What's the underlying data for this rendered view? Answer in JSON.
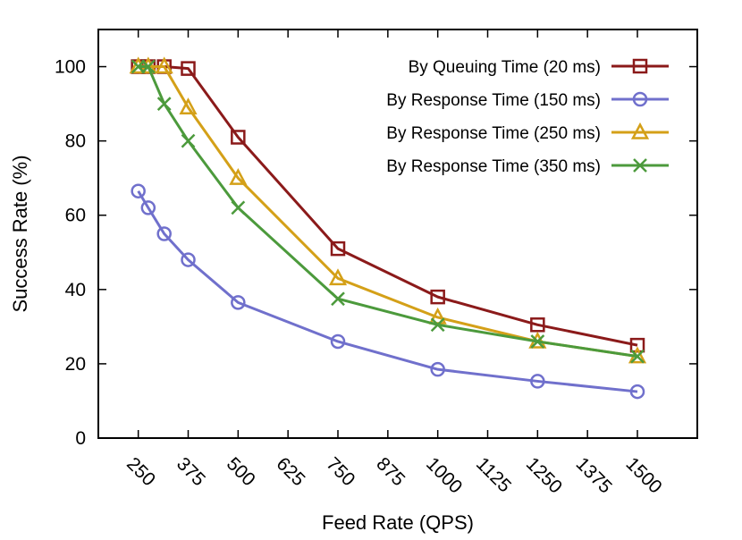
{
  "chart_data": {
    "type": "line",
    "xlabel": "Feed Rate (QPS)",
    "ylabel": "Success Rate (%)",
    "xlim": [
      150,
      1650
    ],
    "ylim": [
      0,
      110
    ],
    "xticks": [
      250,
      375,
      500,
      625,
      750,
      875,
      1000,
      1125,
      1250,
      1375,
      1500
    ],
    "yticks": [
      0,
      20,
      40,
      60,
      80,
      100
    ],
    "grid": false,
    "legend_position": "top-right",
    "series": [
      {
        "name": "By Queuing Time (20 ms)",
        "color": "#8b1a1a",
        "marker": "square",
        "x": [
          250,
          275,
          315,
          375,
          500,
          750,
          1000,
          1250,
          1500
        ],
        "y": [
          100,
          100,
          100,
          99.5,
          81,
          51,
          38,
          30.5,
          25
        ]
      },
      {
        "name": "By Response Time (150 ms)",
        "color": "#7070cc",
        "marker": "circle",
        "x": [
          250,
          275,
          315,
          375,
          500,
          750,
          1000,
          1250,
          1500
        ],
        "y": [
          66.5,
          62,
          55,
          48,
          36.5,
          26,
          18.5,
          15.3,
          12.5
        ]
      },
      {
        "name": "By Response Time (250 ms)",
        "color": "#d4a018",
        "marker": "triangle",
        "x": [
          250,
          275,
          315,
          375,
          500,
          750,
          1000,
          1250,
          1500
        ],
        "y": [
          100,
          100,
          100,
          89,
          70,
          43,
          32.5,
          26,
          22
        ]
      },
      {
        "name": "By Response Time (350 ms)",
        "color": "#4c9a3c",
        "marker": "x",
        "x": [
          250,
          275,
          315,
          375,
          500,
          750,
          1000,
          1250,
          1500
        ],
        "y": [
          100,
          100,
          90,
          80,
          62,
          37.5,
          30.5,
          26,
          22
        ]
      }
    ]
  }
}
